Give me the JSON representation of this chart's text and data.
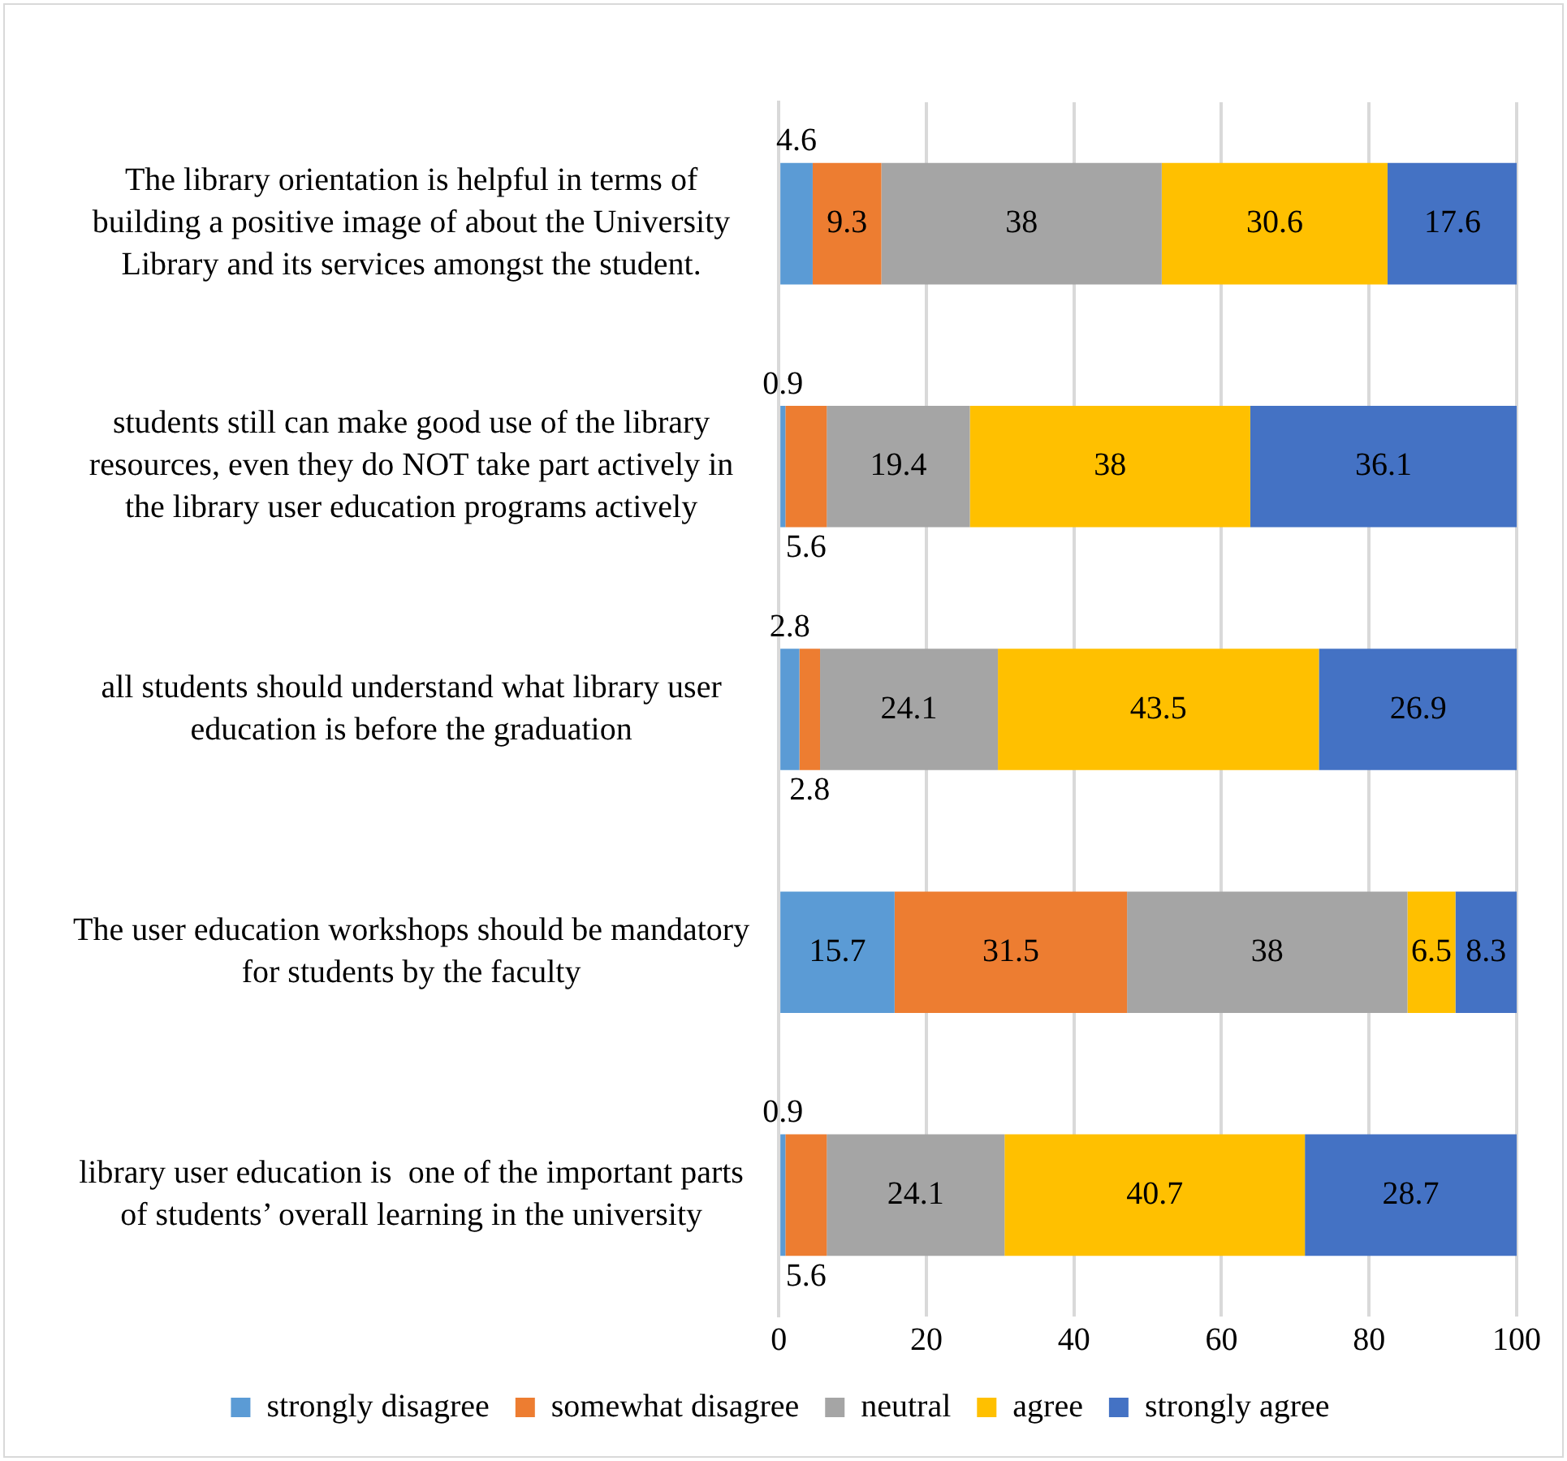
{
  "chart_data": {
    "type": "bar",
    "orientation": "horizontal",
    "stacked": true,
    "data_labels": true,
    "grid": "x",
    "legend": "bottom",
    "categories": [
      "The library orientation is helpful in terms of building a positive image of about the University Library and its services amongst the student.",
      "students still can make good use of the library resources, even they do NOT take part actively in the library user education programs actively",
      "all students should understand what library user education is before the graduation",
      "The user education workshops should be mandatory for students by the faculty",
      "library user education is  one of the important parts of students’ overall learning in the university"
    ],
    "xlim": [
      0,
      100
    ],
    "xticks": [
      0,
      20,
      40,
      60,
      80,
      100
    ],
    "series": [
      {
        "name": "strongly disagree",
        "color": "#5b9bd5",
        "values": [
          4.6,
          0.9,
          2.8,
          15.7,
          0.9
        ]
      },
      {
        "name": "somewhat disagree",
        "color": "#ed7d31",
        "values": [
          9.3,
          5.6,
          2.8,
          31.5,
          5.6
        ]
      },
      {
        "name": "neutral",
        "color": "#a5a5a5",
        "values": [
          38,
          19.4,
          24.1,
          38,
          24.1
        ]
      },
      {
        "name": "agree",
        "color": "#ffc000",
        "values": [
          30.6,
          38,
          43.5,
          6.5,
          40.7
        ]
      },
      {
        "name": "strongly agree",
        "color": "#4472c4",
        "values": [
          17.6,
          36.1,
          26.9,
          8.3,
          28.7
        ]
      }
    ]
  }
}
